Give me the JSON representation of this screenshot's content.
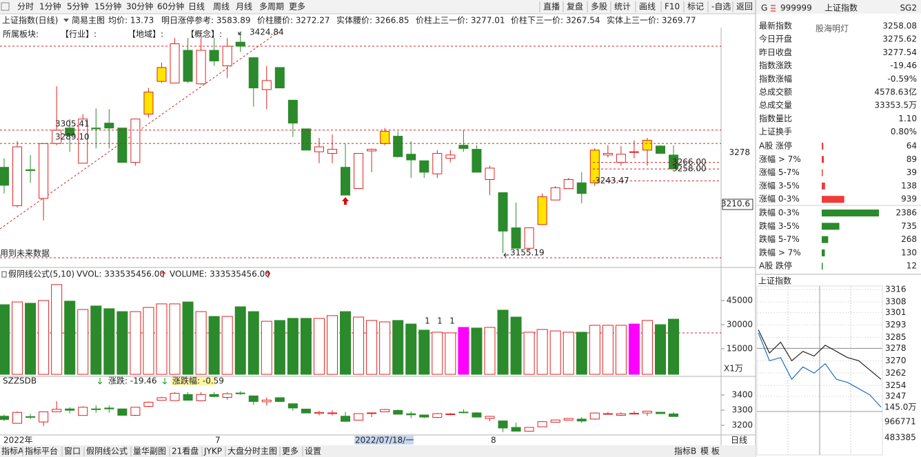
{
  "toolbar": {
    "left": [
      "分时",
      "1分钟",
      "5分钟",
      "15分钟",
      "30分钟",
      "60分钟",
      "日线",
      "周线",
      "月线",
      "多周期",
      "更多"
    ],
    "active": 6,
    "right": [
      "直播",
      "复盘",
      "多股",
      "统计",
      "画线",
      "F10",
      "标记",
      "-自选",
      "返回"
    ]
  },
  "info_bar": {
    "title": "上证指数(日线)",
    "mode": "简易主图",
    "items": [
      "均价: 13.73",
      "明日涨停参考: 3583.89",
      "价柱腰价: 3272.27",
      "实体腰价: 3266.85",
      "价柱上三一价: 3277.01",
      "价柱下三一价: 3267.54",
      "实体上三一价: 3269.77"
    ]
  },
  "sector_bar": [
    "所属板块:",
    "【行业】:",
    "【地域】:",
    "【概念】:"
  ],
  "main_chart": {
    "type": "candlestick",
    "up_color": "#e02020",
    "down_color": "#2b8a2b",
    "highlight_color": "#ffe600",
    "highlighted": [
      11,
      12,
      29,
      41,
      45,
      49
    ],
    "ylim": [
      3140.1,
      3430.8
    ],
    "candles": [
      [
        3260,
        3271,
        3228,
        3238
      ],
      [
        3213,
        3292,
        3211,
        3285
      ],
      [
        3257,
        3275,
        3241,
        3256
      ],
      [
        3222,
        3289,
        3195,
        3289
      ],
      [
        3289.1,
        3359,
        3287,
        3305.41
      ],
      [
        3308,
        3319,
        3279,
        3299
      ],
      [
        3265,
        3325,
        3265,
        3319
      ],
      [
        3308,
        3332,
        3283,
        3307
      ],
      [
        3314,
        3331,
        3283,
        3308
      ],
      [
        3308,
        3308,
        3266,
        3266
      ],
      [
        3266,
        3319,
        3262,
        3319
      ],
      [
        3325,
        3357,
        3321,
        3352
      ],
      [
        3365,
        3388,
        3363,
        3382
      ],
      [
        3363,
        3418,
        3363,
        3411
      ],
      [
        3403,
        3418,
        3363,
        3365
      ],
      [
        3362,
        3418,
        3361,
        3403
      ],
      [
        3403,
        3418,
        3384,
        3390
      ],
      [
        3384,
        3418,
        3369,
        3408
      ],
      [
        3413,
        3424.84,
        3401,
        3408
      ],
      [
        3394,
        3394,
        3334,
        3357
      ],
      [
        3355,
        3384,
        3331,
        3366
      ],
      [
        3382,
        3382,
        3357,
        3357
      ],
      [
        3342,
        3342,
        3297,
        3314
      ],
      [
        3307,
        3307,
        3281,
        3281
      ],
      [
        3279,
        3296,
        3265,
        3285
      ],
      [
        3277,
        3300,
        3265,
        3282
      ],
      [
        3260,
        3289,
        3226,
        3226
      ],
      [
        3234,
        3277,
        3234,
        3277
      ],
      [
        3280,
        3283,
        3254,
        3282
      ],
      [
        3289,
        3308,
        3287,
        3304
      ],
      [
        3298,
        3304,
        3272,
        3273
      ],
      [
        3276,
        3292,
        3247,
        3269
      ],
      [
        3268,
        3268,
        3247,
        3254
      ],
      [
        3252,
        3281,
        3247,
        3277
      ],
      [
        3271,
        3281,
        3266,
        3275
      ],
      [
        3287,
        3306,
        3279,
        3283
      ],
      [
        3282,
        3287,
        3254,
        3254
      ],
      [
        3245,
        3262,
        3226,
        3259
      ],
      [
        3229,
        3229,
        3155.19,
        3182
      ],
      [
        3186,
        3217,
        3161,
        3161
      ],
      [
        3161,
        3186,
        3158,
        3186
      ],
      [
        3190,
        3228,
        3190,
        3224
      ],
      [
        3220,
        3237,
        3220,
        3235
      ],
      [
        3234,
        3247,
        3234,
        3245
      ],
      [
        3241,
        3254,
        3216,
        3228
      ],
      [
        3241,
        3283,
        3237,
        3281
      ],
      [
        3275,
        3287,
        3272,
        3277
      ],
      [
        3266,
        3286,
        3262,
        3276
      ],
      [
        3279,
        3293,
        3271,
        3279
      ],
      [
        3281,
        3296,
        3262,
        3293
      ],
      [
        3286,
        3287,
        3277,
        3277
      ],
      [
        3275,
        3287,
        3258,
        3258
      ]
    ],
    "price_labels": [
      3305.41,
      {
        "value": 3289.1,
        "label": "3289.10"
      },
      3424.84,
      3155.19,
      3243.47,
      {
        "value": 3266,
        "label": "3266.00"
      },
      {
        "value": 3258,
        "label": "3258.00"
      }
    ],
    "axis_labels": [
      3278,
      3210.6
    ],
    "note": "用到未来数据"
  },
  "volume_chart": {
    "type": "bar",
    "legend": [
      "假阴线公式(5,10)",
      "VVOL: 333535456.00",
      "VOLUME: 333535456.00"
    ],
    "unit": "X1万",
    "ylim": [
      -1700,
      63400
    ],
    "yticks": [
      15000,
      30000,
      45000
    ],
    "highlight_color": "#ff00ff",
    "highlighted": [
      35,
      48
    ],
    "values": [
      42400,
      44100,
      43300,
      45000,
      54900,
      44600,
      39400,
      41600,
      39900,
      38100,
      38100,
      40700,
      42900,
      42900,
      44100,
      38100,
      35100,
      35100,
      41100,
      38100,
      32100,
      32600,
      33900,
      33900,
      33900,
      35600,
      38100,
      34700,
      32600,
      31700,
      32600,
      30400,
      26600,
      25300,
      24900,
      28300,
      27900,
      28300,
      39000,
      34700,
      25300,
      27000,
      26100,
      25300,
      25300,
      29600,
      29600,
      29600,
      30400,
      32600,
      30000,
      33400
    ],
    "signals": [
      "1",
      "1",
      "1"
    ]
  },
  "index_chart": {
    "legend": [
      "SZZSDB",
      "涨跌: -19.46",
      "涨跌幅: -0.59"
    ],
    "ylim": [
      3140.9,
      3513.6
    ],
    "yticks": [
      3200,
      3300,
      3400
    ]
  },
  "date_axis": [
    "2022年",
    "7",
    "2022/07/18/一",
    "8"
  ],
  "period_label": "日线",
  "bottom_tabs": {
    "left": [
      "指标A",
      "指标平台",
      "窗口",
      "假阴线公式",
      "量华副图",
      "21看盘",
      "JYKP",
      "大盘分时主图",
      "更多",
      "设置"
    ],
    "right": [
      "指标B",
      "模 板"
    ]
  },
  "side_panel": {
    "header": {
      "flag": "G",
      "code": "999999",
      "name": "上证指数",
      "tag": "SG2"
    },
    "watermark": "股海明灯",
    "quotes": [
      {
        "label": "最新指数",
        "value": "3258.08",
        "color": "#1a9a1a"
      },
      {
        "label": "今日开盘",
        "value": "3275.62",
        "color": "#1a9a1a"
      },
      {
        "label": "昨日收盘",
        "value": "3277.54",
        "color": "#222222"
      },
      {
        "label": "指数涨跌",
        "value": "-19.46",
        "color": "#1a9a1a"
      },
      {
        "label": "指数涨幅",
        "value": "-0.59%",
        "color": "#1a9a1a"
      },
      {
        "label": "总成交额",
        "value": "4578.63亿",
        "color": "#222222"
      },
      {
        "label": "总成交量",
        "value": "33353.5万",
        "color": "#222222"
      },
      {
        "label": "指数量比",
        "value": "1.10",
        "color": "#e02020"
      },
      {
        "label": "上证换手",
        "value": "0.80%",
        "color": "#222222"
      }
    ],
    "breadth": {
      "up_color": "#f03a3a",
      "down_color": "#2b8a2b",
      "up": [
        {
          "label": "A股 涨停",
          "value": 64
        },
        {
          "label": "涨幅 > 7%",
          "value": 89
        },
        {
          "label": "涨幅 5-7%",
          "value": 39
        },
        {
          "label": "涨幅 3-5%",
          "value": 138
        },
        {
          "label": "涨幅 0-3%",
          "value": 939
        }
      ],
      "down": [
        {
          "label": "跌幅 0-3%",
          "value": 2386
        },
        {
          "label": "跌幅 3-5%",
          "value": 735
        },
        {
          "label": "跌幅 5-7%",
          "value": 268
        },
        {
          "label": "跌幅 > 7%",
          "value": 130
        },
        {
          "label": "A股 跌停",
          "value": 12
        }
      ]
    },
    "intraday": {
      "title": "上证指数",
      "ylim": [
        3238.1,
        3319.1
      ],
      "yticks": [
        3316,
        3308,
        3301,
        3293,
        3285,
        3278,
        3270,
        3262,
        3254,
        3247
      ],
      "series": [
        {
          "color": "#222222",
          "values": [
            3290,
            3275,
            3282,
            3270,
            3276,
            3273,
            3280,
            3276,
            3272,
            3270,
            3264,
            3258
          ]
        },
        {
          "color": "#1f6fc0",
          "values": [
            3288,
            3270,
            3272,
            3258,
            3266,
            3262,
            3268,
            3258,
            3256,
            3252,
            3248,
            3240
          ]
        }
      ],
      "volume_labels": [
        "145.0万",
        "966771",
        "483385"
      ]
    }
  }
}
